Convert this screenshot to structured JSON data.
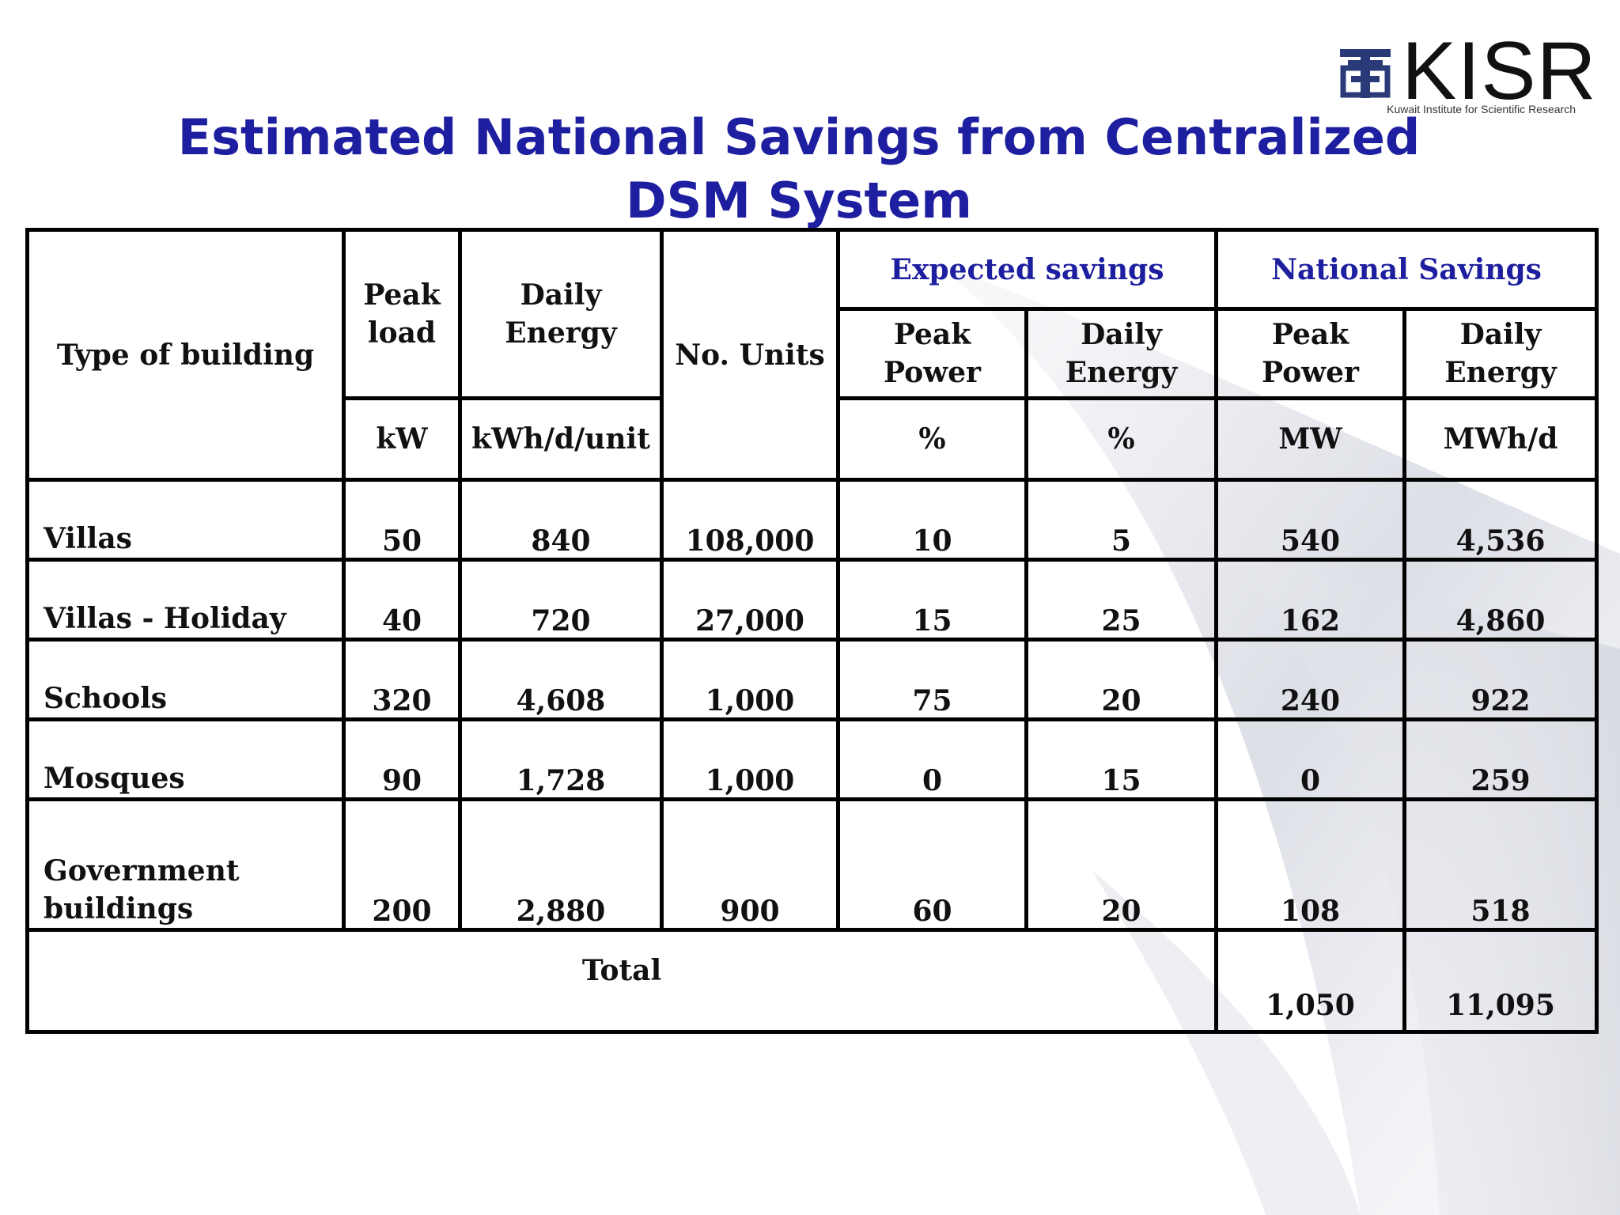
{
  "title": "Estimated National Savings from Centralized DSM System",
  "logo": {
    "name": "KISR",
    "subtitle": "Kuwait Institute for Scientific Research"
  },
  "colors": {
    "title": "#1e1ea0",
    "group_header": "#1e1ea0",
    "border": "#000000"
  },
  "table": {
    "header": {
      "type_of_building": "Type of building",
      "peak_load_line1": "Peak",
      "peak_load_line2": "load",
      "daily_energy_line1": "Daily",
      "daily_energy_line2": "Energy",
      "no_units": "No. Units",
      "expected_savings": "Expected savings",
      "national_savings": "National Savings",
      "es_peak_line1": "Peak",
      "es_peak_line2": "Power",
      "es_daily_line1": "Daily",
      "es_daily_line2": "Energy",
      "ns_peak_line1": "Peak",
      "ns_peak_line2": "Power",
      "ns_daily_line1": "Daily",
      "ns_daily_line2": "Energy"
    },
    "units": {
      "peak_load": "kW",
      "daily_energy": "kWh/d/unit",
      "es_peak": "%",
      "es_daily": "%",
      "ns_peak": "MW",
      "ns_daily": "MWh/d"
    },
    "rows": [
      {
        "type": "Villas",
        "peak_load": "50",
        "daily_energy": "840",
        "units": "108,000",
        "es_peak": "10",
        "es_daily": "5",
        "ns_peak": "540",
        "ns_daily": "4,536"
      },
      {
        "type": "Villas - Holiday",
        "peak_load": "40",
        "daily_energy": "720",
        "units": "27,000",
        "es_peak": "15",
        "es_daily": "25",
        "ns_peak": "162",
        "ns_daily": "4,860"
      },
      {
        "type": "Schools",
        "peak_load": "320",
        "daily_energy": "4,608",
        "units": "1,000",
        "es_peak": "75",
        "es_daily": "20",
        "ns_peak": "240",
        "ns_daily": "922"
      },
      {
        "type": "Mosques",
        "peak_load": "90",
        "daily_energy": "1,728",
        "units": "1,000",
        "es_peak": "0",
        "es_daily": "15",
        "ns_peak": "0",
        "ns_daily": "259"
      },
      {
        "type_line1": "Government",
        "type_line2": "buildings",
        "peak_load": "200",
        "daily_energy": "2,880",
        "units": "900",
        "es_peak": "60",
        "es_daily": "20",
        "ns_peak": "108",
        "ns_daily": "518"
      }
    ],
    "total": {
      "label": "Total",
      "ns_peak": "1,050",
      "ns_daily": "11,095"
    }
  }
}
